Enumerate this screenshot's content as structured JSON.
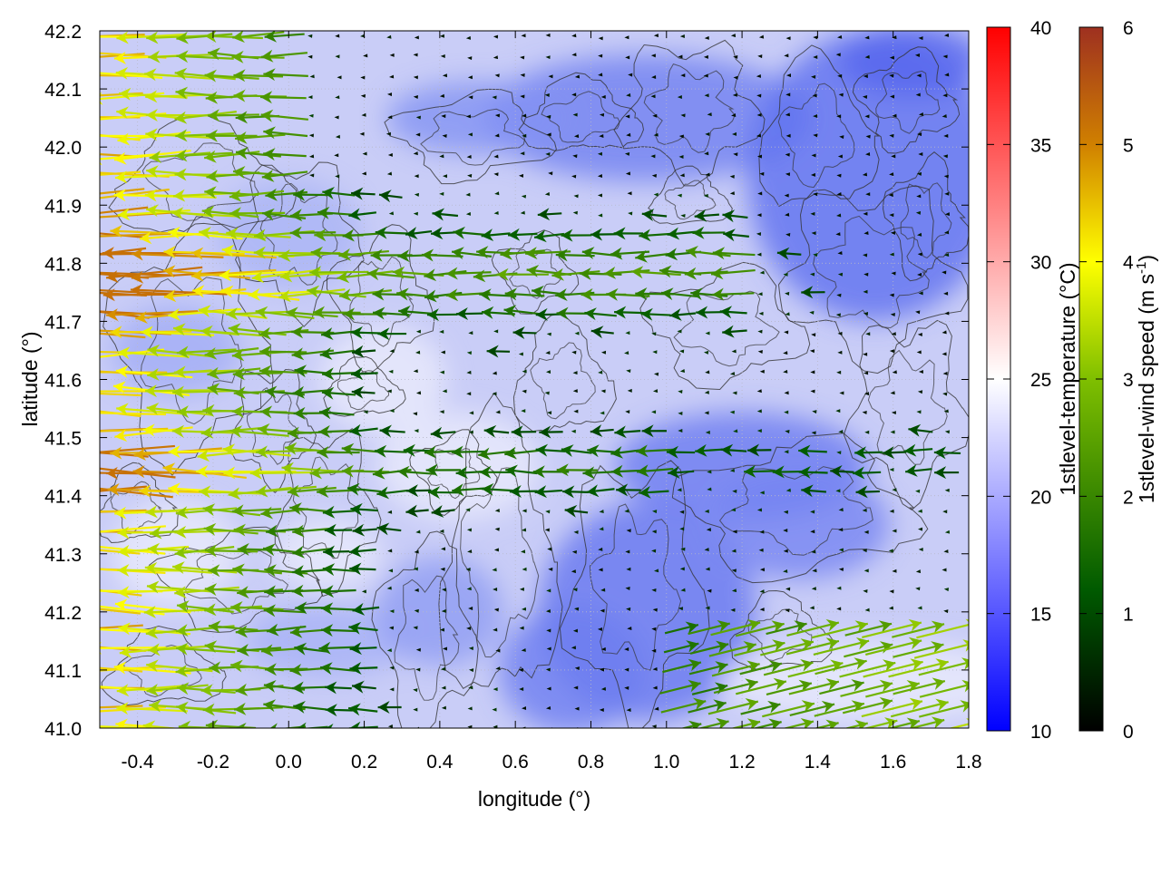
{
  "chart_data": {
    "type": "heatmap",
    "title": "",
    "xlabel": "longitude (°)",
    "ylabel": "latitude (°)",
    "xlim": [
      -0.5,
      1.8
    ],
    "ylim": [
      41.0,
      42.2
    ],
    "x_ticks": [
      "-0.4",
      "-0.2",
      "0.0",
      "0.2",
      "0.4",
      "0.6",
      "0.8",
      "1.0",
      "1.2",
      "1.4",
      "1.6",
      "1.8"
    ],
    "x_tick_values": [
      -0.4,
      -0.2,
      0.0,
      0.2,
      0.4,
      0.6,
      0.8,
      1.0,
      1.2,
      1.4,
      1.6,
      1.8
    ],
    "y_ticks": [
      "41.0",
      "41.1",
      "41.2",
      "41.3",
      "41.4",
      "41.5",
      "41.6",
      "41.7",
      "41.8",
      "41.9",
      "42.0",
      "42.1",
      "42.2"
    ],
    "y_tick_values": [
      41.0,
      41.1,
      41.2,
      41.3,
      41.4,
      41.5,
      41.6,
      41.7,
      41.8,
      41.9,
      42.0,
      42.1,
      42.2
    ],
    "grid": true,
    "colorbars": [
      {
        "label": "1stlevel-temperature (°C)",
        "range": [
          10,
          40
        ],
        "tick_labels": [
          "10",
          "15",
          "20",
          "25",
          "30",
          "35",
          "40"
        ],
        "tick_values": [
          10,
          15,
          20,
          25,
          30,
          35,
          40
        ],
        "colors": [
          "#0000ff",
          "#ffffff",
          "#ff0000"
        ]
      },
      {
        "label_main": "1stlevel-wind speed (m s",
        "label_sup": "-1",
        "label_end": ")",
        "range": [
          0,
          6
        ],
        "tick_labels": [
          "0",
          "1",
          "2",
          "3",
          "4",
          "5",
          "6"
        ],
        "tick_values": [
          0,
          1,
          2,
          3,
          4,
          5,
          6
        ],
        "colors": [
          "#000000",
          "#006400",
          "#7fbf00",
          "#ffff00",
          "#d08000",
          "#a03020"
        ]
      }
    ],
    "temperature_field": {
      "description": "approx. surface temperature, mostly 17-23 °C",
      "min": 15,
      "max": 24
    },
    "wind_field": {
      "units": "m s-1",
      "dominant_direction": "westward (easterly flow), eastward flow in south-east corner",
      "max_speed": 5.2
    },
    "annotations": [
      "contour lines of terrain elevation (black)"
    ]
  }
}
